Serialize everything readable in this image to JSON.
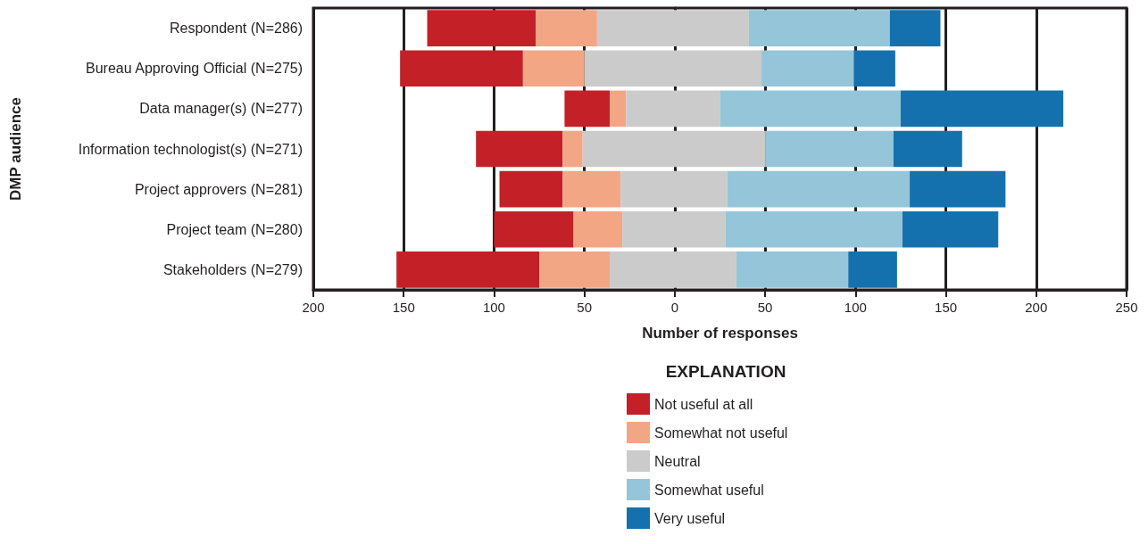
{
  "chart_data": {
    "type": "bar",
    "orientation": "horizontal",
    "xlabel": "Number of responses",
    "ylabel": "DMP audience",
    "legend_title": "EXPLANATION",
    "legend": "bottom",
    "categories": [
      "Respondent (N=286)",
      "Bureau Approving Official (N=275)",
      "Data manager(s) (N=277)",
      "Information technologist(s) (N=271)",
      "Project approvers (N=281)",
      "Project team (N=280)",
      "Stakeholders (N=279)"
    ],
    "series": [
      {
        "name": "Not useful at all",
        "color": "#c42027",
        "base": [
          -137,
          -152,
          -61,
          -110,
          -97,
          -100,
          -154
        ],
        "values": [
          60,
          68,
          25,
          48,
          35,
          44,
          79
        ]
      },
      {
        "name": "Somewhat not useful",
        "color": "#f3a684",
        "base": [
          -77,
          -84,
          -36,
          -62,
          -62,
          -56,
          -75
        ],
        "values": [
          34,
          34,
          9,
          11,
          32,
          27,
          39
        ]
      },
      {
        "name": "Neutral",
        "color": "#cbcbcb",
        "base": [
          -43,
          -50,
          -27,
          -51,
          -30,
          -29,
          -36
        ],
        "values": [
          84,
          98,
          52,
          101,
          59,
          57,
          70
        ]
      },
      {
        "name": "Somewhat useful",
        "color": "#95c5d9",
        "base": [
          41,
          48,
          25,
          50,
          29,
          28,
          34
        ],
        "values": [
          78,
          51,
          100,
          71,
          101,
          98,
          62
        ]
      },
      {
        "name": "Very useful",
        "color": "#1571ae",
        "base": [
          119,
          99,
          125,
          121,
          130,
          126,
          96
        ],
        "values": [
          28,
          23,
          90,
          38,
          53,
          53,
          27
        ]
      }
    ],
    "xlim": [
      -200,
      250
    ],
    "xticks": [
      {
        "value": -200,
        "label": "200"
      },
      {
        "value": -150,
        "label": "150"
      },
      {
        "value": -100,
        "label": "100"
      },
      {
        "value": -50,
        "label": "50"
      },
      0,
      50,
      100,
      150,
      200,
      250
    ],
    "grid": "x"
  }
}
